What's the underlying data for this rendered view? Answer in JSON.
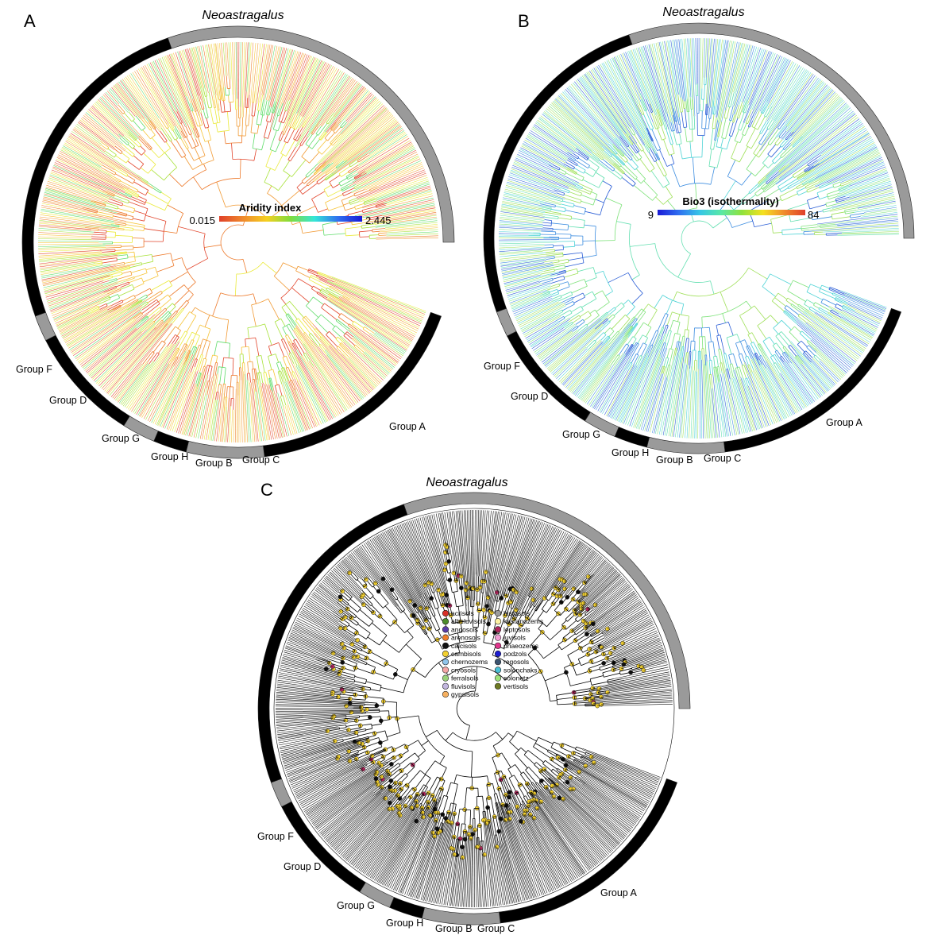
{
  "panels": [
    {
      "id": "A",
      "letter": "A",
      "title": "Neoastragalus",
      "legend": {
        "type": "colorbar",
        "title": "Aridity index",
        "min_label": "0.015",
        "max_label": "2.445",
        "gradient": [
          "#e0402a",
          "#f08a2c",
          "#f5d020",
          "#7fdc3c",
          "#35e6d8",
          "#2f6ff0",
          "#1a1ad6"
        ]
      },
      "tree_palette": [
        "#e2452c",
        "#ed7a2c",
        "#f19a34",
        "#f6c53a",
        "#eaea3a",
        "#a8e23a",
        "#5fdc6a"
      ],
      "groups": [
        {
          "label": "Group A",
          "start": 20,
          "end": 83,
          "fill": "#000000"
        },
        {
          "label": "Group C",
          "start": 83,
          "end": 104,
          "fill": "#9a9a9a"
        },
        {
          "label": "Group B",
          "start": 104,
          "end": 113,
          "fill": "#000000"
        },
        {
          "label": "Group H",
          "start": 113,
          "end": 122,
          "fill": "#9a9a9a"
        },
        {
          "label": "Group G",
          "start": 122,
          "end": 153,
          "fill": "#000000"
        },
        {
          "label": "Group D",
          "start": 153,
          "end": 160,
          "fill": "#9a9a9a"
        },
        {
          "label": "Group F",
          "start": 160,
          "end": 251,
          "fill": "#000000"
        },
        {
          "label": "",
          "start": 251,
          "end": 360,
          "fill": "#9a9a9a"
        }
      ]
    },
    {
      "id": "B",
      "letter": "B",
      "title": "Neoastragalus",
      "legend": {
        "type": "colorbar",
        "title": "Bio3  (isothermality)",
        "min_label": "9",
        "max_label": "84",
        "gradient": [
          "#1a1ad6",
          "#2f6ff0",
          "#35c6e6",
          "#59e8a8",
          "#8fe23c",
          "#f5e020",
          "#f08a2c",
          "#e0402a"
        ]
      },
      "tree_palette": [
        "#4fd3d6",
        "#62dfb0",
        "#7ee27a",
        "#a0e05a",
        "#3d8de0",
        "#2b5ed6"
      ],
      "groups": [
        {
          "label": "Group A",
          "start": 20,
          "end": 83,
          "fill": "#000000"
        },
        {
          "label": "Group C",
          "start": 83,
          "end": 104,
          "fill": "#9a9a9a"
        },
        {
          "label": "Group B",
          "start": 104,
          "end": 113,
          "fill": "#000000"
        },
        {
          "label": "Group H",
          "start": 113,
          "end": 122,
          "fill": "#9a9a9a"
        },
        {
          "label": "Group G",
          "start": 122,
          "end": 153,
          "fill": "#000000"
        },
        {
          "label": "Group D",
          "start": 153,
          "end": 160,
          "fill": "#9a9a9a"
        },
        {
          "label": "Group F",
          "start": 160,
          "end": 251,
          "fill": "#000000"
        },
        {
          "label": "",
          "start": 251,
          "end": 360,
          "fill": "#9a9a9a"
        }
      ]
    },
    {
      "id": "C",
      "letter": "C",
      "title": "Neoastragalus",
      "legend": {
        "type": "categorical",
        "items": [
          {
            "label": "acrisols",
            "color": "#d73027"
          },
          {
            "label": "albeluvisols",
            "color": "#4c8c2b"
          },
          {
            "label": "andosols",
            "color": "#5a3ca8"
          },
          {
            "label": "arenosols",
            "color": "#ef7d2a"
          },
          {
            "label": "calcisols",
            "color": "#111111"
          },
          {
            "label": "cambisols",
            "color": "#f2d030"
          },
          {
            "label": "chernozems",
            "color": "#8fc4ea"
          },
          {
            "label": "cryosols",
            "color": "#f4a6a6"
          },
          {
            "label": "ferralsols",
            "color": "#9ad27a"
          },
          {
            "label": "fluvisols",
            "color": "#c2b6de"
          },
          {
            "label": "gypsisols",
            "color": "#f6b060"
          },
          {
            "label": "histosols",
            "color": "#9c9c9c"
          },
          {
            "label": "kastanozems",
            "color": "#fdf2a2"
          },
          {
            "label": "leptosols",
            "color": "#b0265c"
          },
          {
            "label": "luvisols",
            "color": "#f2a0d6"
          },
          {
            "label": "phaeozems",
            "color": "#e0368c"
          },
          {
            "label": "podzols",
            "color": "#1d1dd0"
          },
          {
            "label": "regosols",
            "color": "#3c5470"
          },
          {
            "label": "solonchaks",
            "color": "#48c0d6"
          },
          {
            "label": "solonetz",
            "color": "#9ee27a"
          },
          {
            "label": "vertisols",
            "color": "#6e7a22"
          }
        ]
      },
      "tree_palette": [
        "#000000"
      ],
      "groups": [
        {
          "label": "Group A",
          "start": 20,
          "end": 83,
          "fill": "#000000"
        },
        {
          "label": "Group C",
          "start": 83,
          "end": 104,
          "fill": "#9a9a9a"
        },
        {
          "label": "Group B",
          "start": 104,
          "end": 113,
          "fill": "#000000"
        },
        {
          "label": "Group H",
          "start": 113,
          "end": 122,
          "fill": "#9a9a9a"
        },
        {
          "label": "Group G",
          "start": 122,
          "end": 153,
          "fill": "#000000"
        },
        {
          "label": "Group D",
          "start": 153,
          "end": 160,
          "fill": "#9a9a9a"
        },
        {
          "label": "Group F",
          "start": 160,
          "end": 251,
          "fill": "#000000"
        },
        {
          "label": "",
          "start": 251,
          "end": 360,
          "fill": "#9a9a9a"
        }
      ]
    }
  ]
}
